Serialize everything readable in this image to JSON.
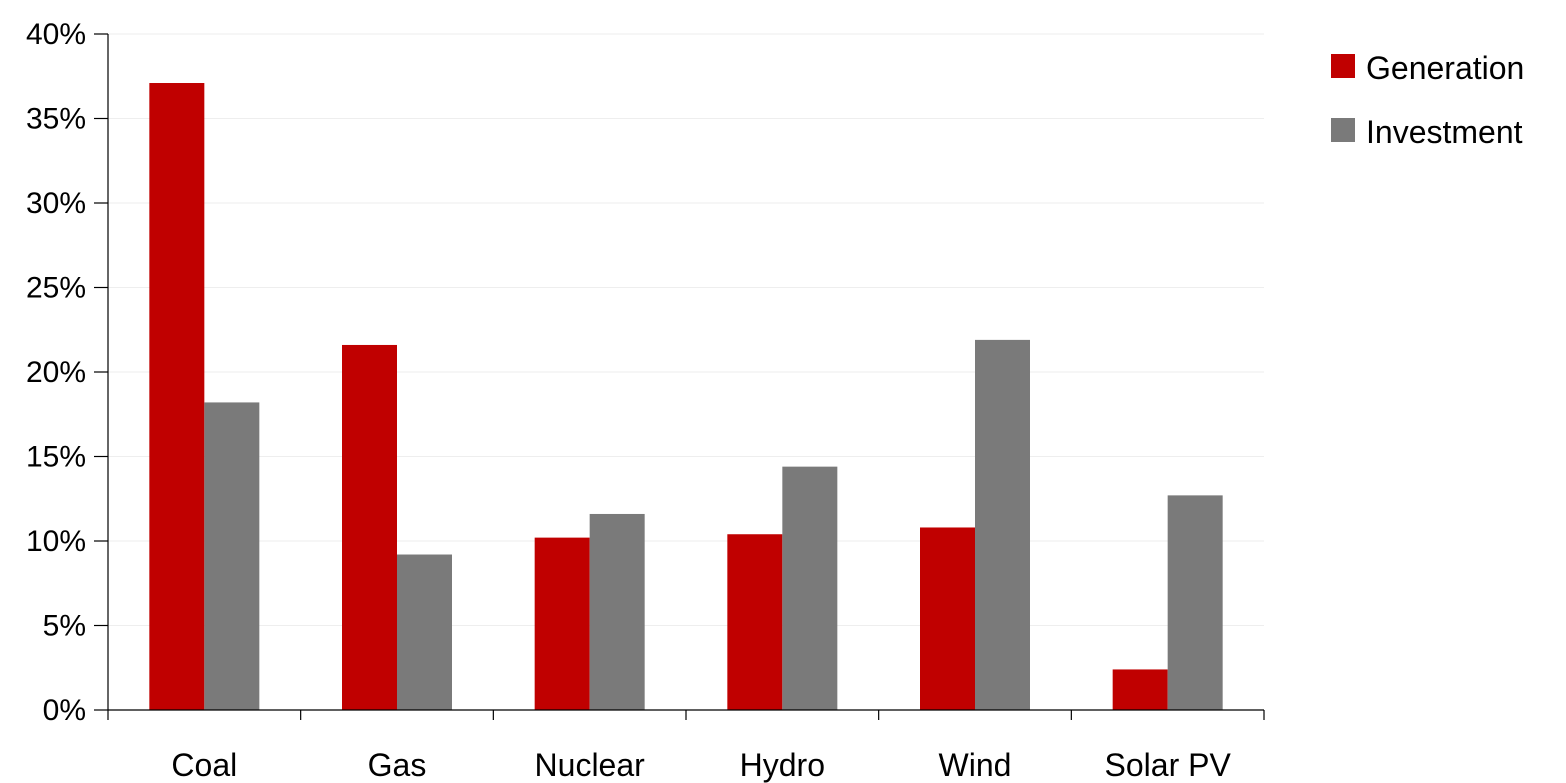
{
  "chart_data": {
    "type": "bar",
    "categories": [
      "Coal",
      "Gas",
      "Nuclear",
      "Hydro",
      "Wind",
      "Solar PV"
    ],
    "series": [
      {
        "name": "Generation",
        "values": [
          37.1,
          21.6,
          10.2,
          10.4,
          10.8,
          2.4
        ],
        "color": "#C00000"
      },
      {
        "name": "Investment",
        "values": [
          18.2,
          9.2,
          11.6,
          14.4,
          21.9,
          12.7
        ],
        "color": "#7A7A7A"
      }
    ],
    "ylim": [
      0,
      40
    ],
    "yticks": [
      0,
      5,
      10,
      15,
      20,
      25,
      30,
      35,
      40
    ],
    "ytick_labels": [
      "0%",
      "5%",
      "10%",
      "15%",
      "20%",
      "25%",
      "30%",
      "35%",
      "40%"
    ],
    "title": "",
    "xlabel": "",
    "ylabel": "",
    "legend_position": "top-right",
    "grid": true
  }
}
